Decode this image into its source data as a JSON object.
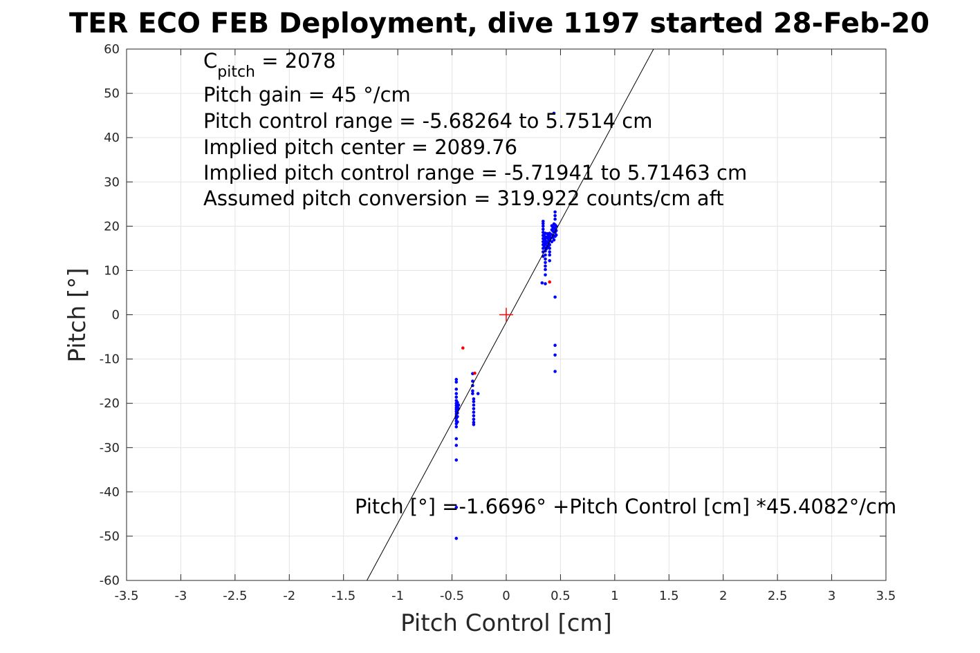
{
  "chart_data": {
    "type": "scatter",
    "title": "TER ECO FEB Deployment, dive 1197 started 28-Feb-20",
    "xlabel": "Pitch Control [cm]",
    "ylabel": "Pitch [°]",
    "xlim": [
      -3.5,
      3.5
    ],
    "ylim": [
      -60,
      60
    ],
    "xticks": [
      -3.5,
      -3,
      -2.5,
      -2,
      -1.5,
      -1,
      -0.5,
      0,
      0.5,
      1,
      1.5,
      2,
      2.5,
      3,
      3.5
    ],
    "xtick_labels": [
      "-3.5",
      "-3",
      "-2.5",
      "-2",
      "-1.5",
      "-1",
      "-0.5",
      "0",
      "0.5",
      "1",
      "1.5",
      "2",
      "2.5",
      "3",
      "3.5"
    ],
    "yticks": [
      -60,
      -50,
      -40,
      -30,
      -20,
      -10,
      0,
      10,
      20,
      30,
      40,
      50,
      60
    ],
    "ytick_labels": [
      "-60",
      "-50",
      "-40",
      "-30",
      "-20",
      "-10",
      "0",
      "10",
      "20",
      "30",
      "40",
      "50",
      "60"
    ],
    "grid": true,
    "annotations": {
      "c_pitch_symbol": "C",
      "c_pitch_subscript": "pitch",
      "c_pitch_value": " = 2078",
      "lines": [
        "Pitch gain = 45 °/cm",
        "Pitch control range = -5.68264 to 5.7514 cm",
        "Implied pitch center = 2089.76",
        "Implied pitch control range = -5.71941 to 5.71463 cm",
        "Assumed pitch conversion = 319.922 counts/cm aft"
      ],
      "fit_equation": "Pitch [°] =-1.6696° +Pitch Control [cm] *45.4082°/cm"
    },
    "fit_line": {
      "intercept": -1.6696,
      "slope": 45.4082,
      "color": "#000000"
    },
    "center_marker": {
      "x": 0,
      "y": 0,
      "color": "#ff0000"
    },
    "series": [
      {
        "color": "#0000ff",
        "points": [
          [
            -0.46,
            -14.6
          ],
          [
            -0.46,
            -15.2
          ],
          [
            -0.46,
            -16.8
          ],
          [
            -0.46,
            -17.8
          ],
          [
            -0.46,
            -18.6
          ],
          [
            -0.46,
            -19.4
          ],
          [
            -0.46,
            -20.0
          ],
          [
            -0.46,
            -20.5
          ],
          [
            -0.46,
            -21.0
          ],
          [
            -0.46,
            -21.4
          ],
          [
            -0.46,
            -21.9
          ],
          [
            -0.46,
            -22.4
          ],
          [
            -0.46,
            -22.9
          ],
          [
            -0.46,
            -23.4
          ],
          [
            -0.46,
            -24.0
          ],
          [
            -0.46,
            -24.6
          ],
          [
            -0.46,
            -25.3
          ],
          [
            -0.46,
            -28.0
          ],
          [
            -0.46,
            -29.5
          ],
          [
            -0.46,
            -32.8
          ],
          [
            -0.46,
            -43.5
          ],
          [
            -0.46,
            -50.5
          ],
          [
            -0.45,
            -19.8
          ],
          [
            -0.45,
            -20.8
          ],
          [
            -0.45,
            -21.6
          ],
          [
            -0.45,
            -22.2
          ],
          [
            -0.45,
            -23.0
          ],
          [
            -0.45,
            -24.2
          ],
          [
            -0.44,
            -20.4
          ],
          [
            -0.44,
            -21.2
          ],
          [
            -0.31,
            -13.3
          ],
          [
            -0.31,
            -15.0
          ],
          [
            -0.31,
            -16.0
          ],
          [
            -0.31,
            -17.2
          ],
          [
            -0.31,
            -17.8
          ],
          [
            -0.3,
            -19.0
          ],
          [
            -0.3,
            -19.6
          ],
          [
            -0.3,
            -20.4
          ],
          [
            -0.3,
            -21.2
          ],
          [
            -0.3,
            -22.0
          ],
          [
            -0.3,
            -22.8
          ],
          [
            -0.3,
            -23.6
          ],
          [
            -0.3,
            -24.3
          ],
          [
            -0.3,
            -24.8
          ],
          [
            -0.26,
            -17.8
          ],
          [
            0.33,
            7.2
          ],
          [
            0.34,
            13.2
          ],
          [
            0.34,
            14.2
          ],
          [
            0.34,
            15.0
          ],
          [
            0.34,
            15.8
          ],
          [
            0.34,
            16.5
          ],
          [
            0.34,
            17.2
          ],
          [
            0.34,
            17.9
          ],
          [
            0.34,
            18.6
          ],
          [
            0.34,
            19.3
          ],
          [
            0.34,
            20.0
          ],
          [
            0.34,
            20.6
          ],
          [
            0.34,
            21.1
          ],
          [
            0.35,
            15.3
          ],
          [
            0.35,
            16.1
          ],
          [
            0.35,
            17.0
          ],
          [
            0.35,
            18.2
          ],
          [
            0.36,
            7.0
          ],
          [
            0.36,
            9.0
          ],
          [
            0.36,
            10.2
          ],
          [
            0.36,
            11.0
          ],
          [
            0.36,
            11.8
          ],
          [
            0.36,
            12.6
          ],
          [
            0.36,
            13.5
          ],
          [
            0.36,
            14.4
          ],
          [
            0.36,
            15.1
          ],
          [
            0.36,
            15.9
          ],
          [
            0.36,
            16.8
          ],
          [
            0.36,
            17.6
          ],
          [
            0.36,
            18.4
          ],
          [
            0.37,
            14.9
          ],
          [
            0.37,
            16.3
          ],
          [
            0.37,
            17.4
          ],
          [
            0.38,
            15.6
          ],
          [
            0.38,
            16.5
          ],
          [
            0.38,
            17.6
          ],
          [
            0.38,
            18.3
          ],
          [
            0.39,
            15.2
          ],
          [
            0.39,
            16.2
          ],
          [
            0.39,
            17.1
          ],
          [
            0.39,
            18.0
          ],
          [
            0.4,
            12.2
          ],
          [
            0.4,
            13.5
          ],
          [
            0.4,
            14.2
          ],
          [
            0.4,
            15.0
          ],
          [
            0.4,
            15.8
          ],
          [
            0.4,
            16.8
          ],
          [
            0.4,
            17.7
          ],
          [
            0.4,
            18.4
          ],
          [
            0.41,
            17.3
          ],
          [
            0.42,
            16.5
          ],
          [
            0.42,
            18.1
          ],
          [
            0.42,
            19.2
          ],
          [
            0.42,
            20.1
          ],
          [
            0.43,
            17.5
          ],
          [
            0.43,
            18.9
          ],
          [
            0.43,
            19.8
          ],
          [
            0.44,
            16.9
          ],
          [
            0.44,
            17.8
          ],
          [
            0.44,
            18.7
          ],
          [
            0.44,
            19.6
          ],
          [
            0.44,
            20.5
          ],
          [
            0.44,
            45.5
          ],
          [
            0.45,
            17.7
          ],
          [
            0.45,
            18.6
          ],
          [
            0.45,
            19.4
          ],
          [
            0.45,
            20.3
          ],
          [
            0.45,
            21.6
          ],
          [
            0.45,
            22.4
          ],
          [
            0.45,
            23.2
          ],
          [
            0.45,
            4.0
          ],
          [
            0.45,
            -6.9
          ],
          [
            0.45,
            -9.1
          ],
          [
            0.45,
            -12.8
          ],
          [
            0.46,
            18.0
          ],
          [
            0.46,
            19.0
          ],
          [
            0.46,
            20.0
          ]
        ]
      },
      {
        "color": "#ff0000",
        "points": [
          [
            -0.4,
            -7.5
          ],
          [
            -0.29,
            -13.2
          ],
          [
            0.4,
            7.4
          ]
        ]
      }
    ]
  }
}
